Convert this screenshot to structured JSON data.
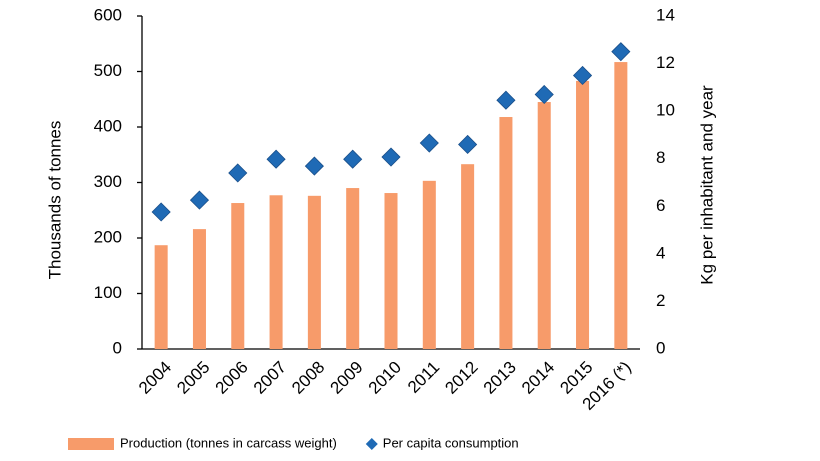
{
  "chart_data": {
    "type": "bar",
    "categories": [
      "2004",
      "2005",
      "2006",
      "2007",
      "2008",
      "2009",
      "2010",
      "2011",
      "2012",
      "2013",
      "2014",
      "2015",
      "2016 (*)"
    ],
    "y_label": "Thousands of tonnes",
    "y2_label": "Kg per inhabitant and year",
    "ylim": [
      0,
      600
    ],
    "yticks": [
      0,
      100,
      200,
      300,
      400,
      500,
      600
    ],
    "y2lim": [
      0,
      14
    ],
    "y2ticks": [
      0,
      2,
      4,
      6,
      8,
      10,
      12,
      14
    ],
    "series": [
      {
        "name": "Production (tonnes in carcass weight)",
        "color": "#f79b6a",
        "marker": "bar",
        "values": [
          187,
          216,
          263,
          277,
          276,
          290,
          281,
          303,
          333,
          418,
          445,
          483,
          517
        ]
      },
      {
        "name": "Per capita consumption",
        "color": "#1f6ab5",
        "marker": "diamond",
        "axis": "y2",
        "values": [
          5.76,
          6.26,
          7.4,
          7.98,
          7.69,
          7.98,
          8.07,
          8.66,
          8.6,
          10.46,
          10.7,
          11.5,
          12.5
        ]
      }
    ]
  }
}
